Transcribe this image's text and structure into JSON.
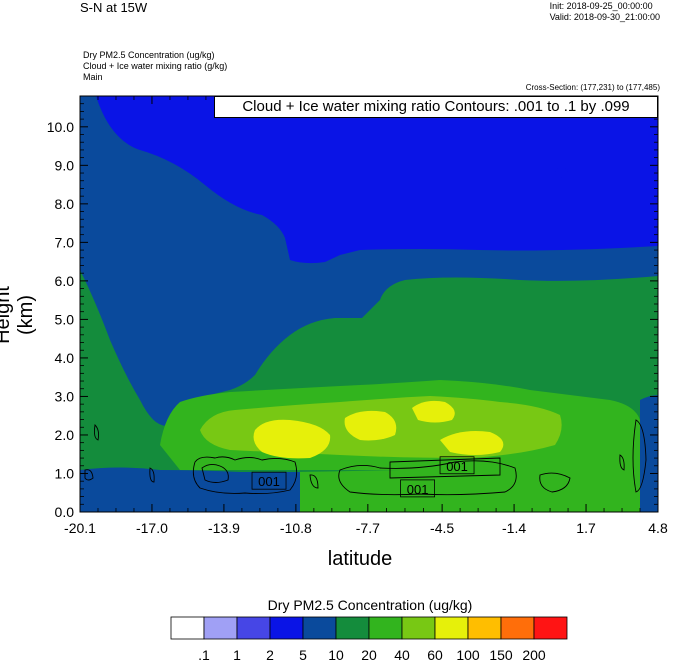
{
  "header": {
    "title": "S-N at 15W",
    "init": "Init: 2018-09-25_00:00:00",
    "valid": "Valid: 2018-09-30_21:00:00",
    "fields": [
      "Dry PM2.5 Concentration   (ug/kg)",
      "Cloud + Ice water mixing ratio   (g/kg)",
      "Main"
    ],
    "cross_section": "Cross-Section: (177,231) to (177,485)"
  },
  "chart_data": {
    "type": "heatmap",
    "xlabel": "latitude",
    "ylabel": "Height (km)",
    "xlim": [
      -20.1,
      4.8
    ],
    "ylim": [
      0,
      10.8
    ],
    "x_ticks": [
      "-20.1",
      "-17.0",
      "-13.9",
      "-10.8",
      "-7.7",
      "-4.5",
      "-1.4",
      "1.7",
      "4.8"
    ],
    "y_ticks": [
      "0.0",
      "1.0",
      "2.0",
      "3.0",
      "4.0",
      "5.0",
      "6.0",
      "7.0",
      "8.0",
      "9.0",
      "10.0"
    ],
    "contour_note": "Cloud + Ice water mixing ratio Contours: .001 to .1 by .099",
    "contour_labels": [
      {
        "text": "001",
        "x": -12.0,
        "y": 0.8
      },
      {
        "text": "001",
        "x": -3.9,
        "y": 1.2
      },
      {
        "text": "001",
        "x": -5.6,
        "y": 0.6
      }
    ],
    "colorbar": {
      "title": "Dry PM2.5 Concentration  (ug/kg)",
      "labels": [
        ".1",
        "1",
        "2",
        "5",
        "10",
        "20",
        "40",
        "60",
        "100",
        "150",
        "200"
      ],
      "colors": [
        "#ffffff",
        "#a0a0f5",
        "#4646e6",
        "#0a14e6",
        "#0a4a9c",
        "#148c3c",
        "#32b41e",
        "#78c814",
        "#e6f00a",
        "#ffbe00",
        "#ff6e0a",
        "#ff1414"
      ]
    },
    "levels_colors": {
      "lvl1": "#0a14e6",
      "lvl2": "#0a4a9c",
      "lvl3": "#148c3c",
      "lvl4": "#32b41e",
      "lvl5": "#78c814",
      "lvl6": "#e6f00a"
    }
  }
}
